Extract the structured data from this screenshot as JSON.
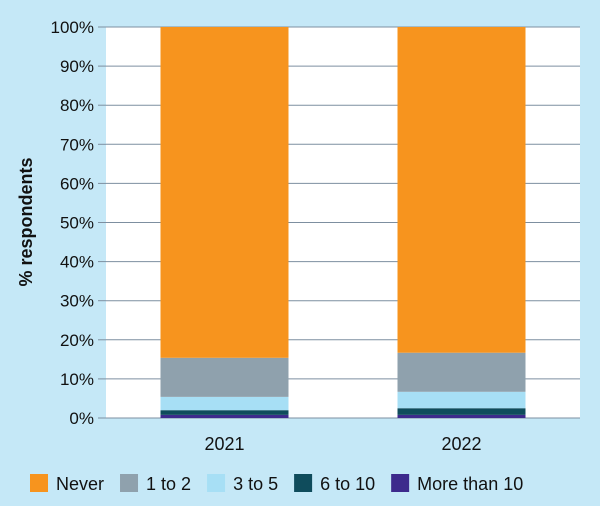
{
  "chart_data": {
    "type": "bar",
    "stacked": true,
    "categories": [
      "2021",
      "2022"
    ],
    "series": [
      {
        "name": "More than 10",
        "color": "#3d2a8c",
        "values": [
          0.8,
          0.8
        ]
      },
      {
        "name": "6 to 10",
        "color": "#0f4c5c",
        "values": [
          1.2,
          1.7
        ]
      },
      {
        "name": "3 to 5",
        "color": "#a7dff5",
        "values": [
          3.4,
          4.2
        ]
      },
      {
        "name": "1 to 2",
        "color": "#8fa1ad",
        "values": [
          10.0,
          10.0
        ]
      },
      {
        "name": "Never",
        "color": "#f7941e",
        "values": [
          84.6,
          83.3
        ]
      }
    ],
    "legend_order": [
      "Never",
      "1 to 2",
      "3 to 5",
      "6 to 10",
      "More than 10"
    ],
    "ylabel": "% respondents",
    "ylim": [
      0,
      100
    ],
    "yticks": [
      "0%",
      "10%",
      "20%",
      "30%",
      "40%",
      "50%",
      "60%",
      "70%",
      "80%",
      "90%",
      "100%"
    ],
    "grid": true,
    "legend_position": "bottom"
  }
}
